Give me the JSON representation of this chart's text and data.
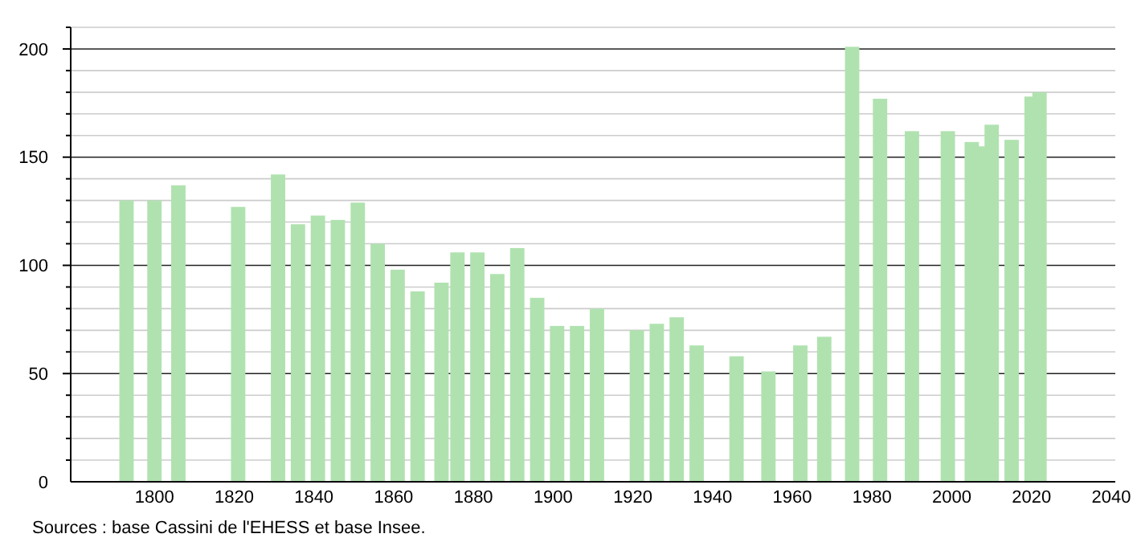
{
  "chart_data": {
    "type": "bar",
    "x": [
      1793,
      1800,
      1806,
      1821,
      1831,
      1836,
      1841,
      1846,
      1851,
      1856,
      1861,
      1866,
      1872,
      1876,
      1881,
      1886,
      1891,
      1896,
      1901,
      1906,
      1911,
      1921,
      1926,
      1931,
      1936,
      1946,
      1954,
      1962,
      1968,
      1975,
      1982,
      1990,
      1999,
      2005,
      2007,
      2010,
      2015,
      2020,
      2022
    ],
    "values": [
      130,
      130,
      137,
      127,
      142,
      119,
      123,
      121,
      129,
      110,
      98,
      88,
      92,
      106,
      106,
      96,
      108,
      85,
      72,
      72,
      80,
      70,
      73,
      76,
      63,
      58,
      51,
      63,
      67,
      201,
      177,
      162,
      162,
      157,
      155,
      165,
      158,
      178,
      180
    ],
    "color": "#b0e2b0",
    "xlim": [
      1779,
      2041
    ],
    "xticks": [
      1800,
      1820,
      1840,
      1860,
      1880,
      1900,
      1920,
      1940,
      1960,
      1980,
      2000,
      2020,
      2040
    ],
    "ylim": [
      0,
      210
    ],
    "yticks": [
      0,
      {
        "value": 10,
        "label": null
      },
      {
        "value": 20,
        "label": null
      },
      {
        "value": 30,
        "label": null
      },
      {
        "value": 40,
        "label": null
      },
      50,
      {
        "value": 60,
        "label": null
      },
      {
        "value": 70,
        "label": null
      },
      {
        "value": 80,
        "label": null
      },
      {
        "value": 90,
        "label": null
      },
      100,
      {
        "value": 110,
        "label": null
      },
      {
        "value": 120,
        "label": null
      },
      {
        "value": 130,
        "label": null
      },
      {
        "value": 140,
        "label": null
      },
      150,
      {
        "value": 160,
        "label": null
      },
      {
        "value": 170,
        "label": null
      },
      {
        "value": 180,
        "label": null
      },
      {
        "value": 190,
        "label": null
      },
      200,
      {
        "value": 210,
        "label": null
      }
    ],
    "grid": "y",
    "legend": false,
    "annotations": [
      "Sources : base Cassini de l'EHESS et base Insee."
    ]
  }
}
